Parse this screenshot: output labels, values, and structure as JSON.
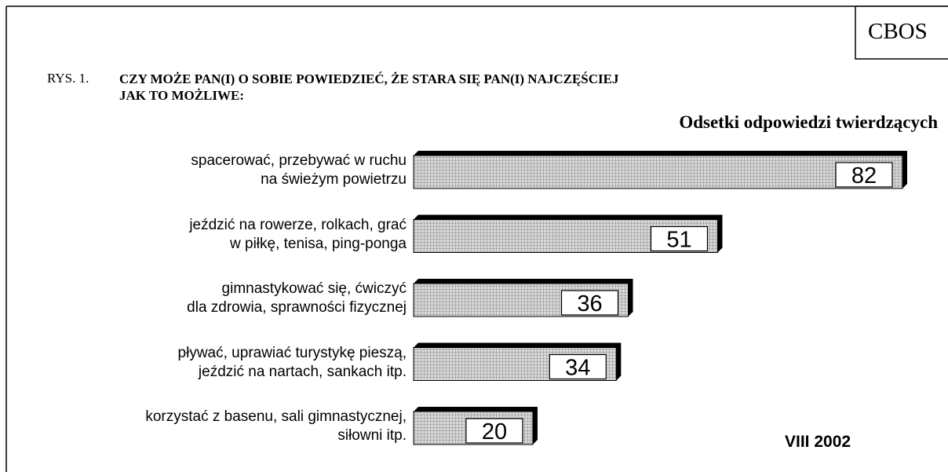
{
  "source": "CBOS",
  "chart_data": {
    "type": "bar",
    "orientation": "horizontal",
    "figure_label": "RYS. 1.",
    "title": "CZY MOŻE PAN(I) O SOBIE POWIEDZIEĆ, ŻE STARA SIĘ PAN(I) NAJCZĘŚCIEJ\nJAK TO MOŻLIWE:",
    "subtitle": "Odsetki odpowiedzi twierdzących",
    "annotation": "VIII 2002",
    "categories": [
      "spacerować, przebywać w ruchu\nna świeżym powietrzu",
      "jeździć na rowerze, rolkach, grać\nw piłkę, tenisa, ping-ponga",
      "gimnastykować się, ćwiczyć\ndla zdrowia, sprawności fizycznej",
      "pływać, uprawiać turystykę pieszą,\njeździć na nartach, sankach itp.",
      "korzystać z basenu, sali gimnastycznej,\nsiłowni itp."
    ],
    "values": [
      82,
      51,
      36,
      34,
      20
    ],
    "color": "#d8d8d8"
  }
}
